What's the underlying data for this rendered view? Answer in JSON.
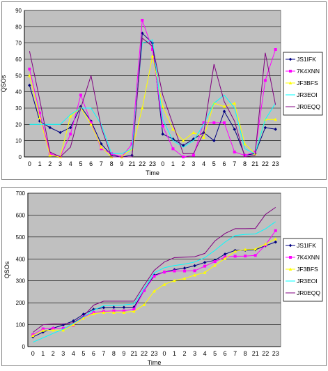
{
  "colors": {
    "plot_bg": "#c0c0c0",
    "grid": "#000000",
    "JS1IFK": "#000080",
    "7K4XNN": "#ff00ff",
    "JF3BFS": "#ffff00",
    "JR3EOI": "#00ffff",
    "JR0EQQ": "#800080"
  },
  "chart_data": [
    {
      "type": "line",
      "xlabel": "Time",
      "ylabel": "QSOs",
      "ylim": [
        0,
        90
      ],
      "yticks": [
        0,
        10,
        20,
        30,
        40,
        50,
        60,
        70,
        80,
        90
      ],
      "grid": "horizontal",
      "legend": "right",
      "x": [
        "0",
        "1",
        "2",
        "3",
        "4",
        "5",
        "6",
        "7",
        "8",
        "9",
        "21",
        "22",
        "23",
        "0",
        "1",
        "2",
        "3",
        "4",
        "5",
        "6",
        "7",
        "8",
        "21",
        "22",
        "23"
      ],
      "series": [
        {
          "name": "JS1IFK",
          "marker": "diamond",
          "values": [
            44,
            22,
            18,
            15,
            18,
            31,
            22,
            8,
            1,
            0,
            1,
            76,
            70,
            14,
            11,
            7,
            11,
            15,
            10,
            28,
            17,
            1,
            2,
            18,
            17
          ]
        },
        {
          "name": "7K4XNN",
          "marker": "square",
          "values": [
            54,
            27,
            2,
            0,
            14,
            38,
            21,
            5,
            2,
            0,
            8,
            84,
            66,
            19,
            5,
            0,
            1,
            21,
            21,
            21,
            3,
            1,
            3,
            47,
            66
          ]
        },
        {
          "name": "JF3BFS",
          "marker": "triangle",
          "values": [
            50,
            24,
            1,
            0,
            25,
            30,
            20,
            6,
            0,
            0,
            5,
            30,
            62,
            31,
            17,
            10,
            15,
            12,
            33,
            31,
            33,
            8,
            2,
            23,
            23
          ]
        },
        {
          "name": "JR3EOI",
          "marker": "none",
          "values": [
            20,
            20,
            20,
            20,
            26,
            30,
            30,
            20,
            2,
            2,
            5,
            70,
            72,
            23,
            10,
            6,
            10,
            20,
            33,
            38,
            30,
            5,
            2,
            23,
            33
          ]
        },
        {
          "name": "JR0EQQ",
          "marker": "none",
          "values": [
            65,
            35,
            3,
            0,
            6,
            30,
            50,
            18,
            0,
            0,
            0,
            73,
            68,
            38,
            20,
            2,
            2,
            15,
            57,
            34,
            22,
            0,
            1,
            64,
            32
          ]
        }
      ]
    },
    {
      "type": "line",
      "xlabel": "Time",
      "ylabel": "QSOs",
      "ylim": [
        0,
        700
      ],
      "yticks": [
        0,
        100,
        200,
        300,
        400,
        500,
        600,
        700
      ],
      "grid": "horizontal",
      "legend": "right",
      "x": [
        "0",
        "1",
        "2",
        "3",
        "4",
        "5",
        "6",
        "7",
        "8",
        "9",
        "21",
        "22",
        "23",
        "0",
        "1",
        "2",
        "3",
        "4",
        "5",
        "6",
        "7",
        "8",
        "21",
        "22",
        "23"
      ],
      "series": [
        {
          "name": "JS1IFK",
          "marker": "diamond",
          "values": [
            44,
            66,
            84,
            99,
            117,
            148,
            170,
            178,
            179,
            179,
            180,
            256,
            326,
            340,
            351,
            358,
            369,
            384,
            394,
            422,
            439,
            440,
            442,
            460,
            477
          ]
        },
        {
          "name": "7K4XNN",
          "marker": "square",
          "values": [
            54,
            81,
            83,
            83,
            97,
            135,
            156,
            161,
            163,
            163,
            171,
            255,
            321,
            340,
            345,
            345,
            346,
            367,
            388,
            409,
            412,
            413,
            416,
            463,
            529
          ]
        },
        {
          "name": "JF3BFS",
          "marker": "triangle",
          "values": [
            50,
            74,
            75,
            75,
            100,
            130,
            150,
            156,
            156,
            156,
            161,
            191,
            253,
            284,
            301,
            311,
            326,
            338,
            371,
            402,
            435,
            443,
            445,
            468,
            491
          ]
        },
        {
          "name": "JR3EOI",
          "marker": "none",
          "values": [
            20,
            40,
            60,
            80,
            106,
            136,
            166,
            186,
            188,
            190,
            195,
            265,
            337,
            360,
            370,
            376,
            386,
            406,
            439,
            477,
            507,
            512,
            514,
            537,
            570
          ]
        },
        {
          "name": "JR0EQQ",
          "marker": "none",
          "values": [
            65,
            100,
            103,
            103,
            109,
            139,
            189,
            207,
            207,
            207,
            207,
            280,
            348,
            386,
            406,
            408,
            410,
            425,
            482,
            516,
            538,
            538,
            539,
            603,
            635
          ]
        }
      ]
    }
  ]
}
